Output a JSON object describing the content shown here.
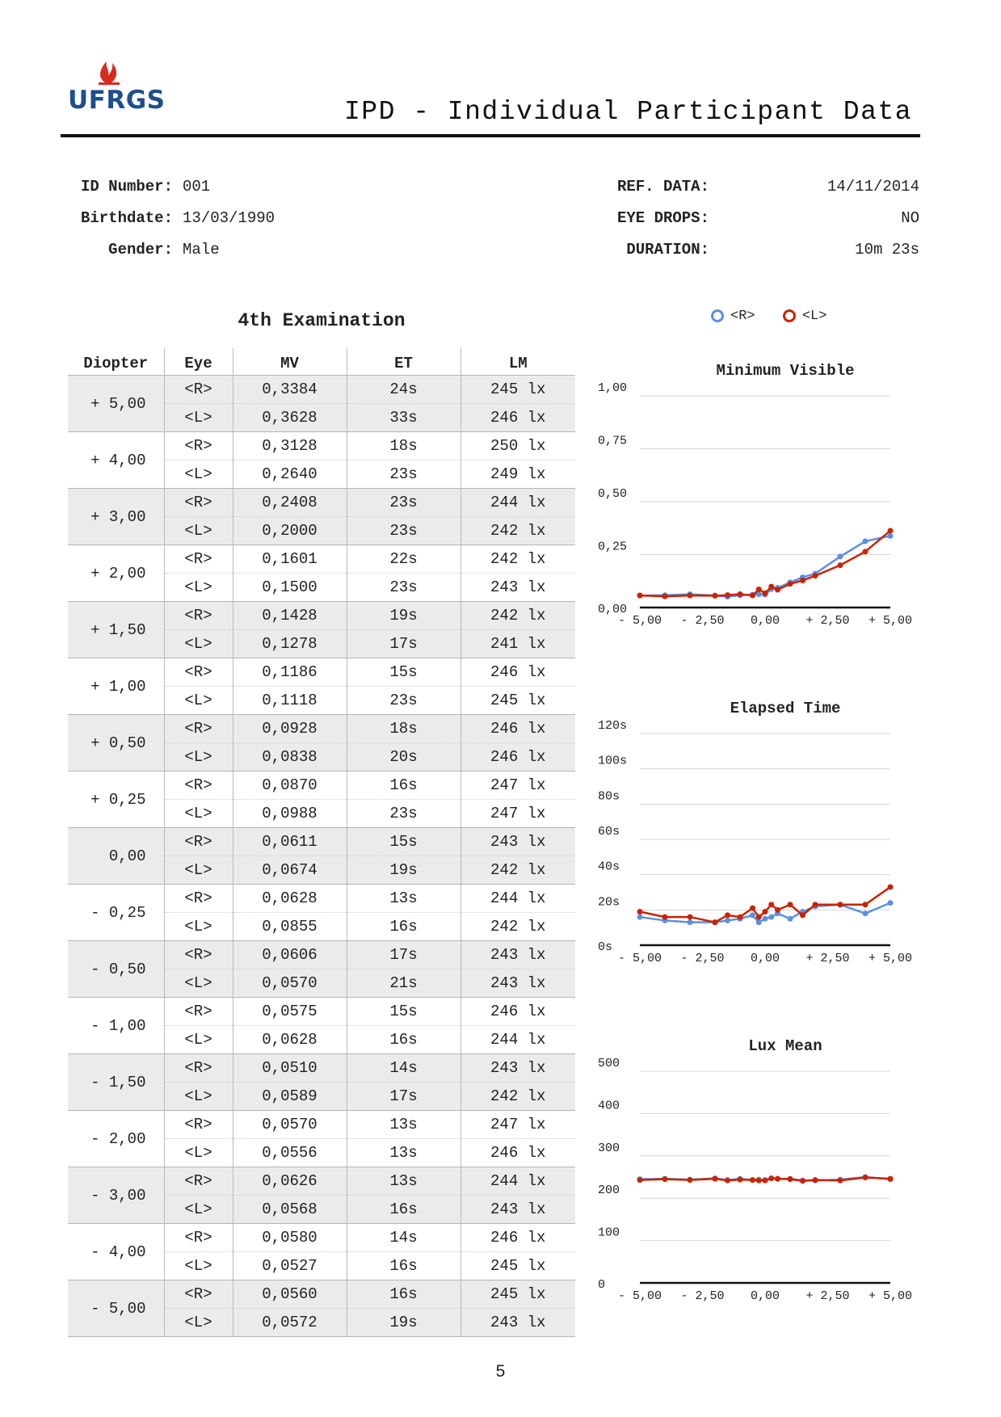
{
  "header": {
    "logo_text": "UFRGS",
    "title": "IPD - Individual Participant Data"
  },
  "info_left": [
    {
      "label": "ID Number:",
      "value": "001"
    },
    {
      "label": "Birthdate:",
      "value": "13/03/1990"
    },
    {
      "label": "Gender:",
      "value": "Male"
    }
  ],
  "info_right": [
    {
      "label": "REF. DATA:",
      "value": "14/11/2014"
    },
    {
      "label": "EYE DROPS:",
      "value": "NO"
    },
    {
      "label": "DURATION:",
      "value": "10m 23s"
    }
  ],
  "exam": {
    "title": "4th Examination",
    "columns": [
      "Diopter",
      "Eye",
      "MV",
      "ET",
      "LM"
    ],
    "groups": [
      {
        "diopter": "+ 5,00",
        "rows": [
          {
            "eye": "<R>",
            "mv": "0,3384",
            "et": "24s",
            "lm": "245 lx"
          },
          {
            "eye": "<L>",
            "mv": "0,3628",
            "et": "33s",
            "lm": "246 lx"
          }
        ]
      },
      {
        "diopter": "+ 4,00",
        "rows": [
          {
            "eye": "<R>",
            "mv": "0,3128",
            "et": "18s",
            "lm": "250 lx"
          },
          {
            "eye": "<L>",
            "mv": "0,2640",
            "et": "23s",
            "lm": "249 lx"
          }
        ]
      },
      {
        "diopter": "+ 3,00",
        "rows": [
          {
            "eye": "<R>",
            "mv": "0,2408",
            "et": "23s",
            "lm": "244 lx"
          },
          {
            "eye": "<L>",
            "mv": "0,2000",
            "et": "23s",
            "lm": "242 lx"
          }
        ]
      },
      {
        "diopter": "+ 2,00",
        "rows": [
          {
            "eye": "<R>",
            "mv": "0,1601",
            "et": "22s",
            "lm": "242 lx"
          },
          {
            "eye": "<L>",
            "mv": "0,1500",
            "et": "23s",
            "lm": "243 lx"
          }
        ]
      },
      {
        "diopter": "+ 1,50",
        "rows": [
          {
            "eye": "<R>",
            "mv": "0,1428",
            "et": "19s",
            "lm": "242 lx"
          },
          {
            "eye": "<L>",
            "mv": "0,1278",
            "et": "17s",
            "lm": "241 lx"
          }
        ]
      },
      {
        "diopter": "+ 1,00",
        "rows": [
          {
            "eye": "<R>",
            "mv": "0,1186",
            "et": "15s",
            "lm": "246 lx"
          },
          {
            "eye": "<L>",
            "mv": "0,1118",
            "et": "23s",
            "lm": "245 lx"
          }
        ]
      },
      {
        "diopter": "+ 0,50",
        "rows": [
          {
            "eye": "<R>",
            "mv": "0,0928",
            "et": "18s",
            "lm": "246 lx"
          },
          {
            "eye": "<L>",
            "mv": "0,0838",
            "et": "20s",
            "lm": "246 lx"
          }
        ]
      },
      {
        "diopter": "+ 0,25",
        "rows": [
          {
            "eye": "<R>",
            "mv": "0,0870",
            "et": "16s",
            "lm": "247 lx"
          },
          {
            "eye": "<L>",
            "mv": "0,0988",
            "et": "23s",
            "lm": "247 lx"
          }
        ]
      },
      {
        "diopter": "0,00",
        "rows": [
          {
            "eye": "<R>",
            "mv": "0,0611",
            "et": "15s",
            "lm": "243 lx"
          },
          {
            "eye": "<L>",
            "mv": "0,0674",
            "et": "19s",
            "lm": "242 lx"
          }
        ]
      },
      {
        "diopter": "- 0,25",
        "rows": [
          {
            "eye": "<R>",
            "mv": "0,0628",
            "et": "13s",
            "lm": "244 lx"
          },
          {
            "eye": "<L>",
            "mv": "0,0855",
            "et": "16s",
            "lm": "242 lx"
          }
        ]
      },
      {
        "diopter": "- 0,50",
        "rows": [
          {
            "eye": "<R>",
            "mv": "0,0606",
            "et": "17s",
            "lm": "243 lx"
          },
          {
            "eye": "<L>",
            "mv": "0,0570",
            "et": "21s",
            "lm": "243 lx"
          }
        ]
      },
      {
        "diopter": "- 1,00",
        "rows": [
          {
            "eye": "<R>",
            "mv": "0,0575",
            "et": "15s",
            "lm": "246 lx"
          },
          {
            "eye": "<L>",
            "mv": "0,0628",
            "et": "16s",
            "lm": "244 lx"
          }
        ]
      },
      {
        "diopter": "- 1,50",
        "rows": [
          {
            "eye": "<R>",
            "mv": "0,0510",
            "et": "14s",
            "lm": "243 lx"
          },
          {
            "eye": "<L>",
            "mv": "0,0589",
            "et": "17s",
            "lm": "242 lx"
          }
        ]
      },
      {
        "diopter": "- 2,00",
        "rows": [
          {
            "eye": "<R>",
            "mv": "0,0570",
            "et": "13s",
            "lm": "247 lx"
          },
          {
            "eye": "<L>",
            "mv": "0,0556",
            "et": "13s",
            "lm": "246 lx"
          }
        ]
      },
      {
        "diopter": "- 3,00",
        "rows": [
          {
            "eye": "<R>",
            "mv": "0,0626",
            "et": "13s",
            "lm": "244 lx"
          },
          {
            "eye": "<L>",
            "mv": "0,0568",
            "et": "16s",
            "lm": "243 lx"
          }
        ]
      },
      {
        "diopter": "- 4,00",
        "rows": [
          {
            "eye": "<R>",
            "mv": "0,0580",
            "et": "14s",
            "lm": "246 lx"
          },
          {
            "eye": "<L>",
            "mv": "0,0527",
            "et": "16s",
            "lm": "245 lx"
          }
        ]
      },
      {
        "diopter": "- 5,00",
        "rows": [
          {
            "eye": "<R>",
            "mv": "0,0560",
            "et": "16s",
            "lm": "245 lx"
          },
          {
            "eye": "<L>",
            "mv": "0,0572",
            "et": "19s",
            "lm": "243 lx"
          }
        ]
      }
    ]
  },
  "legend": [
    {
      "label": "<R>",
      "color": "#5b8fe0"
    },
    {
      "label": "<L>",
      "color": "#cc2200"
    }
  ],
  "colors": {
    "right_eye": "#5b8fe0",
    "left_eye": "#cc2200",
    "shade": "#ebebeb"
  },
  "chart_data": [
    {
      "type": "line",
      "title": "Minimum Visible",
      "x_tick_labels": [
        "- 5,00",
        "- 2,50",
        "0,00",
        "+ 2,50",
        "+ 5,00"
      ],
      "xlim": [
        -5,
        5
      ],
      "y_tick_labels": [
        "0,00",
        "0,25",
        "0,50",
        "0,75",
        "1,00"
      ],
      "ylim": [
        0,
        1
      ],
      "grid": true,
      "x": [
        -5,
        -4,
        -3,
        -2,
        -1.5,
        -1,
        -0.5,
        -0.25,
        0,
        0.25,
        0.5,
        1,
        1.5,
        2,
        3,
        4,
        5
      ],
      "series": [
        {
          "name": "<R>",
          "values": [
            0.056,
            0.058,
            0.0626,
            0.057,
            0.051,
            0.0575,
            0.0606,
            0.0628,
            0.0611,
            0.087,
            0.0928,
            0.1186,
            0.1428,
            0.1601,
            0.2408,
            0.3128,
            0.3384
          ]
        },
        {
          "name": "<L>",
          "values": [
            0.0572,
            0.0527,
            0.0568,
            0.0556,
            0.0589,
            0.0628,
            0.057,
            0.0855,
            0.0674,
            0.0988,
            0.0838,
            0.1118,
            0.1278,
            0.15,
            0.2,
            0.264,
            0.3628
          ]
        }
      ]
    },
    {
      "type": "line",
      "title": "Elapsed Time",
      "x_tick_labels": [
        "- 5,00",
        "- 2,50",
        "0,00",
        "+ 2,50",
        "+ 5,00"
      ],
      "xlim": [
        -5,
        5
      ],
      "y_tick_labels": [
        "0s",
        "20s",
        "40s",
        "60s",
        "80s",
        "100s",
        "120s"
      ],
      "ylim": [
        0,
        120
      ],
      "grid": true,
      "x": [
        -5,
        -4,
        -3,
        -2,
        -1.5,
        -1,
        -0.5,
        -0.25,
        0,
        0.25,
        0.5,
        1,
        1.5,
        2,
        3,
        4,
        5
      ],
      "series": [
        {
          "name": "<R>",
          "values": [
            16,
            14,
            13,
            13,
            14,
            15,
            17,
            13,
            15,
            16,
            18,
            15,
            19,
            22,
            23,
            18,
            24
          ]
        },
        {
          "name": "<L>",
          "values": [
            19,
            16,
            16,
            13,
            17,
            16,
            21,
            16,
            19,
            23,
            20,
            23,
            17,
            23,
            23,
            23,
            33
          ]
        }
      ]
    },
    {
      "type": "line",
      "title": "Lux Mean",
      "x_tick_labels": [
        "- 5,00",
        "- 2,50",
        "0,00",
        "+ 2,50",
        "+ 5,00"
      ],
      "xlim": [
        -5,
        5
      ],
      "y_tick_labels": [
        "0",
        "100",
        "200",
        "300",
        "400",
        "500"
      ],
      "ylim": [
        0,
        500
      ],
      "grid": true,
      "x": [
        -5,
        -4,
        -3,
        -2,
        -1.5,
        -1,
        -0.5,
        -0.25,
        0,
        0.25,
        0.5,
        1,
        1.5,
        2,
        3,
        4,
        5
      ],
      "series": [
        {
          "name": "<R>",
          "values": [
            245,
            246,
            244,
            247,
            243,
            246,
            243,
            244,
            243,
            247,
            246,
            246,
            242,
            242,
            244,
            250,
            245
          ]
        },
        {
          "name": "<L>",
          "values": [
            243,
            245,
            243,
            246,
            242,
            244,
            243,
            242,
            242,
            247,
            246,
            245,
            241,
            243,
            242,
            249,
            246
          ]
        }
      ]
    }
  ],
  "footer": {
    "page_number": "5"
  }
}
